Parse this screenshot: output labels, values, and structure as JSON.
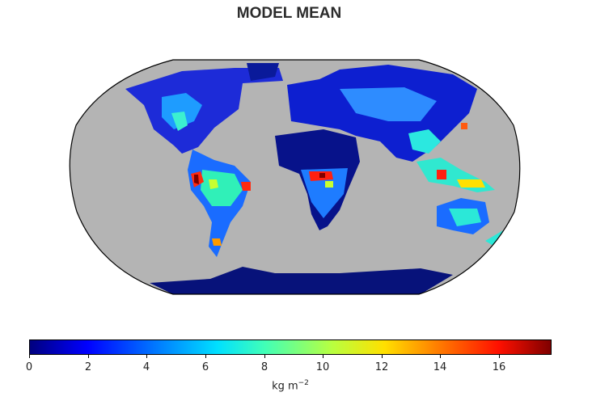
{
  "title": "MODEL MEAN",
  "colorbar": {
    "ticks": [
      "0",
      "2",
      "4",
      "6",
      "8",
      "10",
      "12",
      "14",
      "16"
    ],
    "unit_base": "kg m",
    "unit_exp": "−2",
    "range": [
      0,
      17.8
    ],
    "colormap": "jet"
  },
  "map": {
    "projection": "Robinson",
    "ocean_color": "#b4b4b4",
    "outline_color": "#000000"
  }
}
